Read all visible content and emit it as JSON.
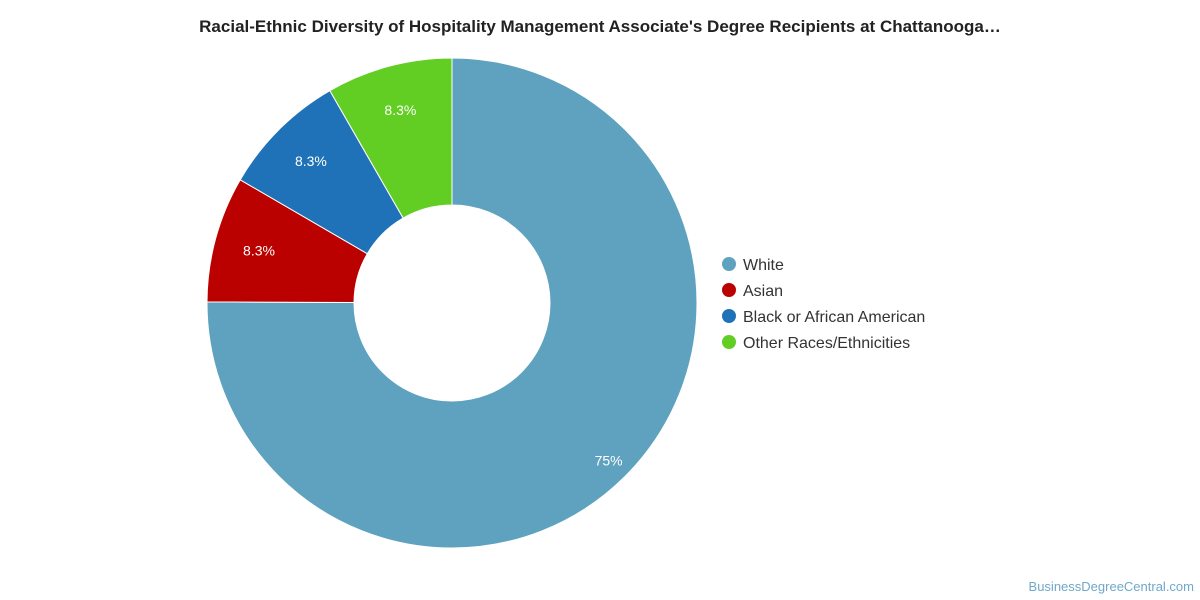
{
  "chart_data": {
    "type": "pie",
    "title": "Racial-Ethnic Diversity of Hospitality Management Associate's Degree Recipients at Chattanooga…",
    "categories": [
      "White",
      "Asian",
      "Black or African American",
      "Other Races/Ethnicities"
    ],
    "values": [
      75,
      8.3,
      8.3,
      8.3
    ],
    "labels": [
      "75%",
      "8.3%",
      "8.3%",
      "8.3%"
    ],
    "colors": [
      "#5ea2bf",
      "#bb0000",
      "#1f72b8",
      "#62cd22"
    ],
    "donut": true,
    "legend_position": "right"
  },
  "credit": "BusinessDegreeCentral.com"
}
